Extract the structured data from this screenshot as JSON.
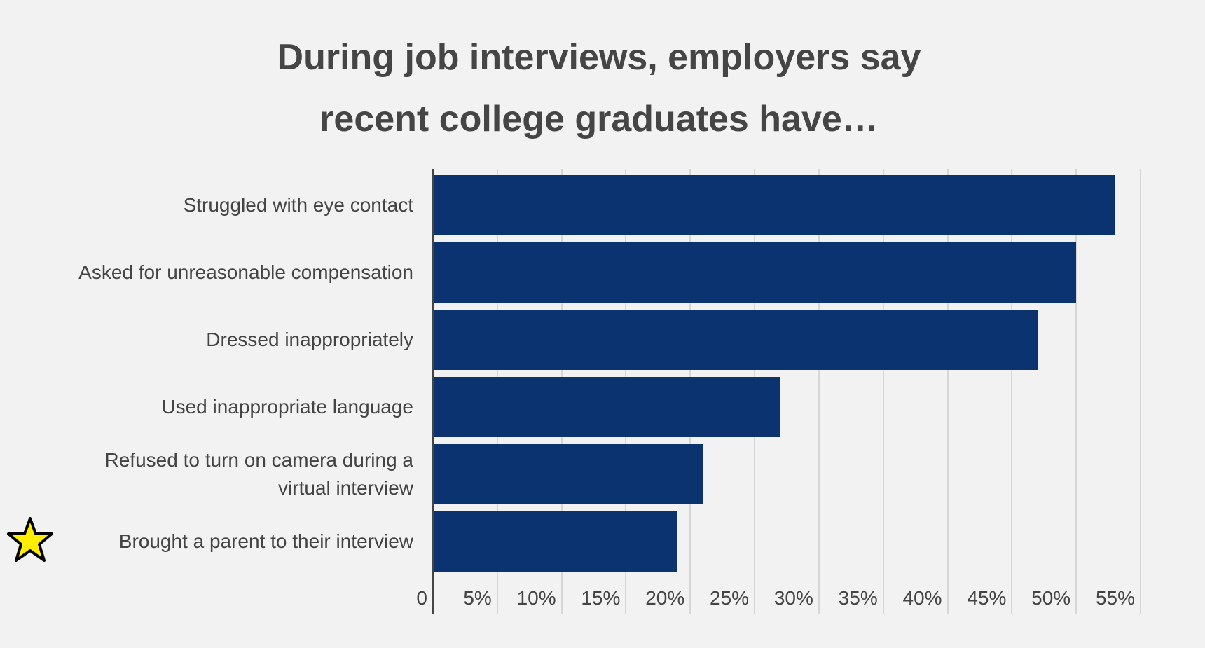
{
  "chart_data": {
    "type": "bar",
    "orientation": "horizontal",
    "title": "During job interviews, employers say recent college graduates have…",
    "categories": [
      "Struggled with eye contact",
      "Asked for unreasonable compensation",
      "Dressed inappropriately",
      "Used inappropriate language",
      "Refused to turn on camera during a virtual interview",
      "Brought a parent to their interview"
    ],
    "values": [
      53,
      50,
      47,
      27,
      21,
      19
    ],
    "color": "#0a3370",
    "xlim": [
      0,
      55
    ],
    "xticks": [
      0,
      {
        "value": 5,
        "label": "5%"
      },
      {
        "value": 10,
        "label": "10%"
      },
      {
        "value": 15,
        "label": "15%"
      },
      {
        "value": 20,
        "label": "20%"
      },
      {
        "value": 25,
        "label": "25%"
      },
      {
        "value": 30,
        "label": "30%"
      },
      {
        "value": 35,
        "label": "35%"
      },
      {
        "value": 40,
        "label": "40%"
      },
      {
        "value": 45,
        "label": "45%"
      },
      {
        "value": 50,
        "label": "50%"
      },
      {
        "value": 55,
        "label": "55%"
      }
    ],
    "grid": true
  }
}
